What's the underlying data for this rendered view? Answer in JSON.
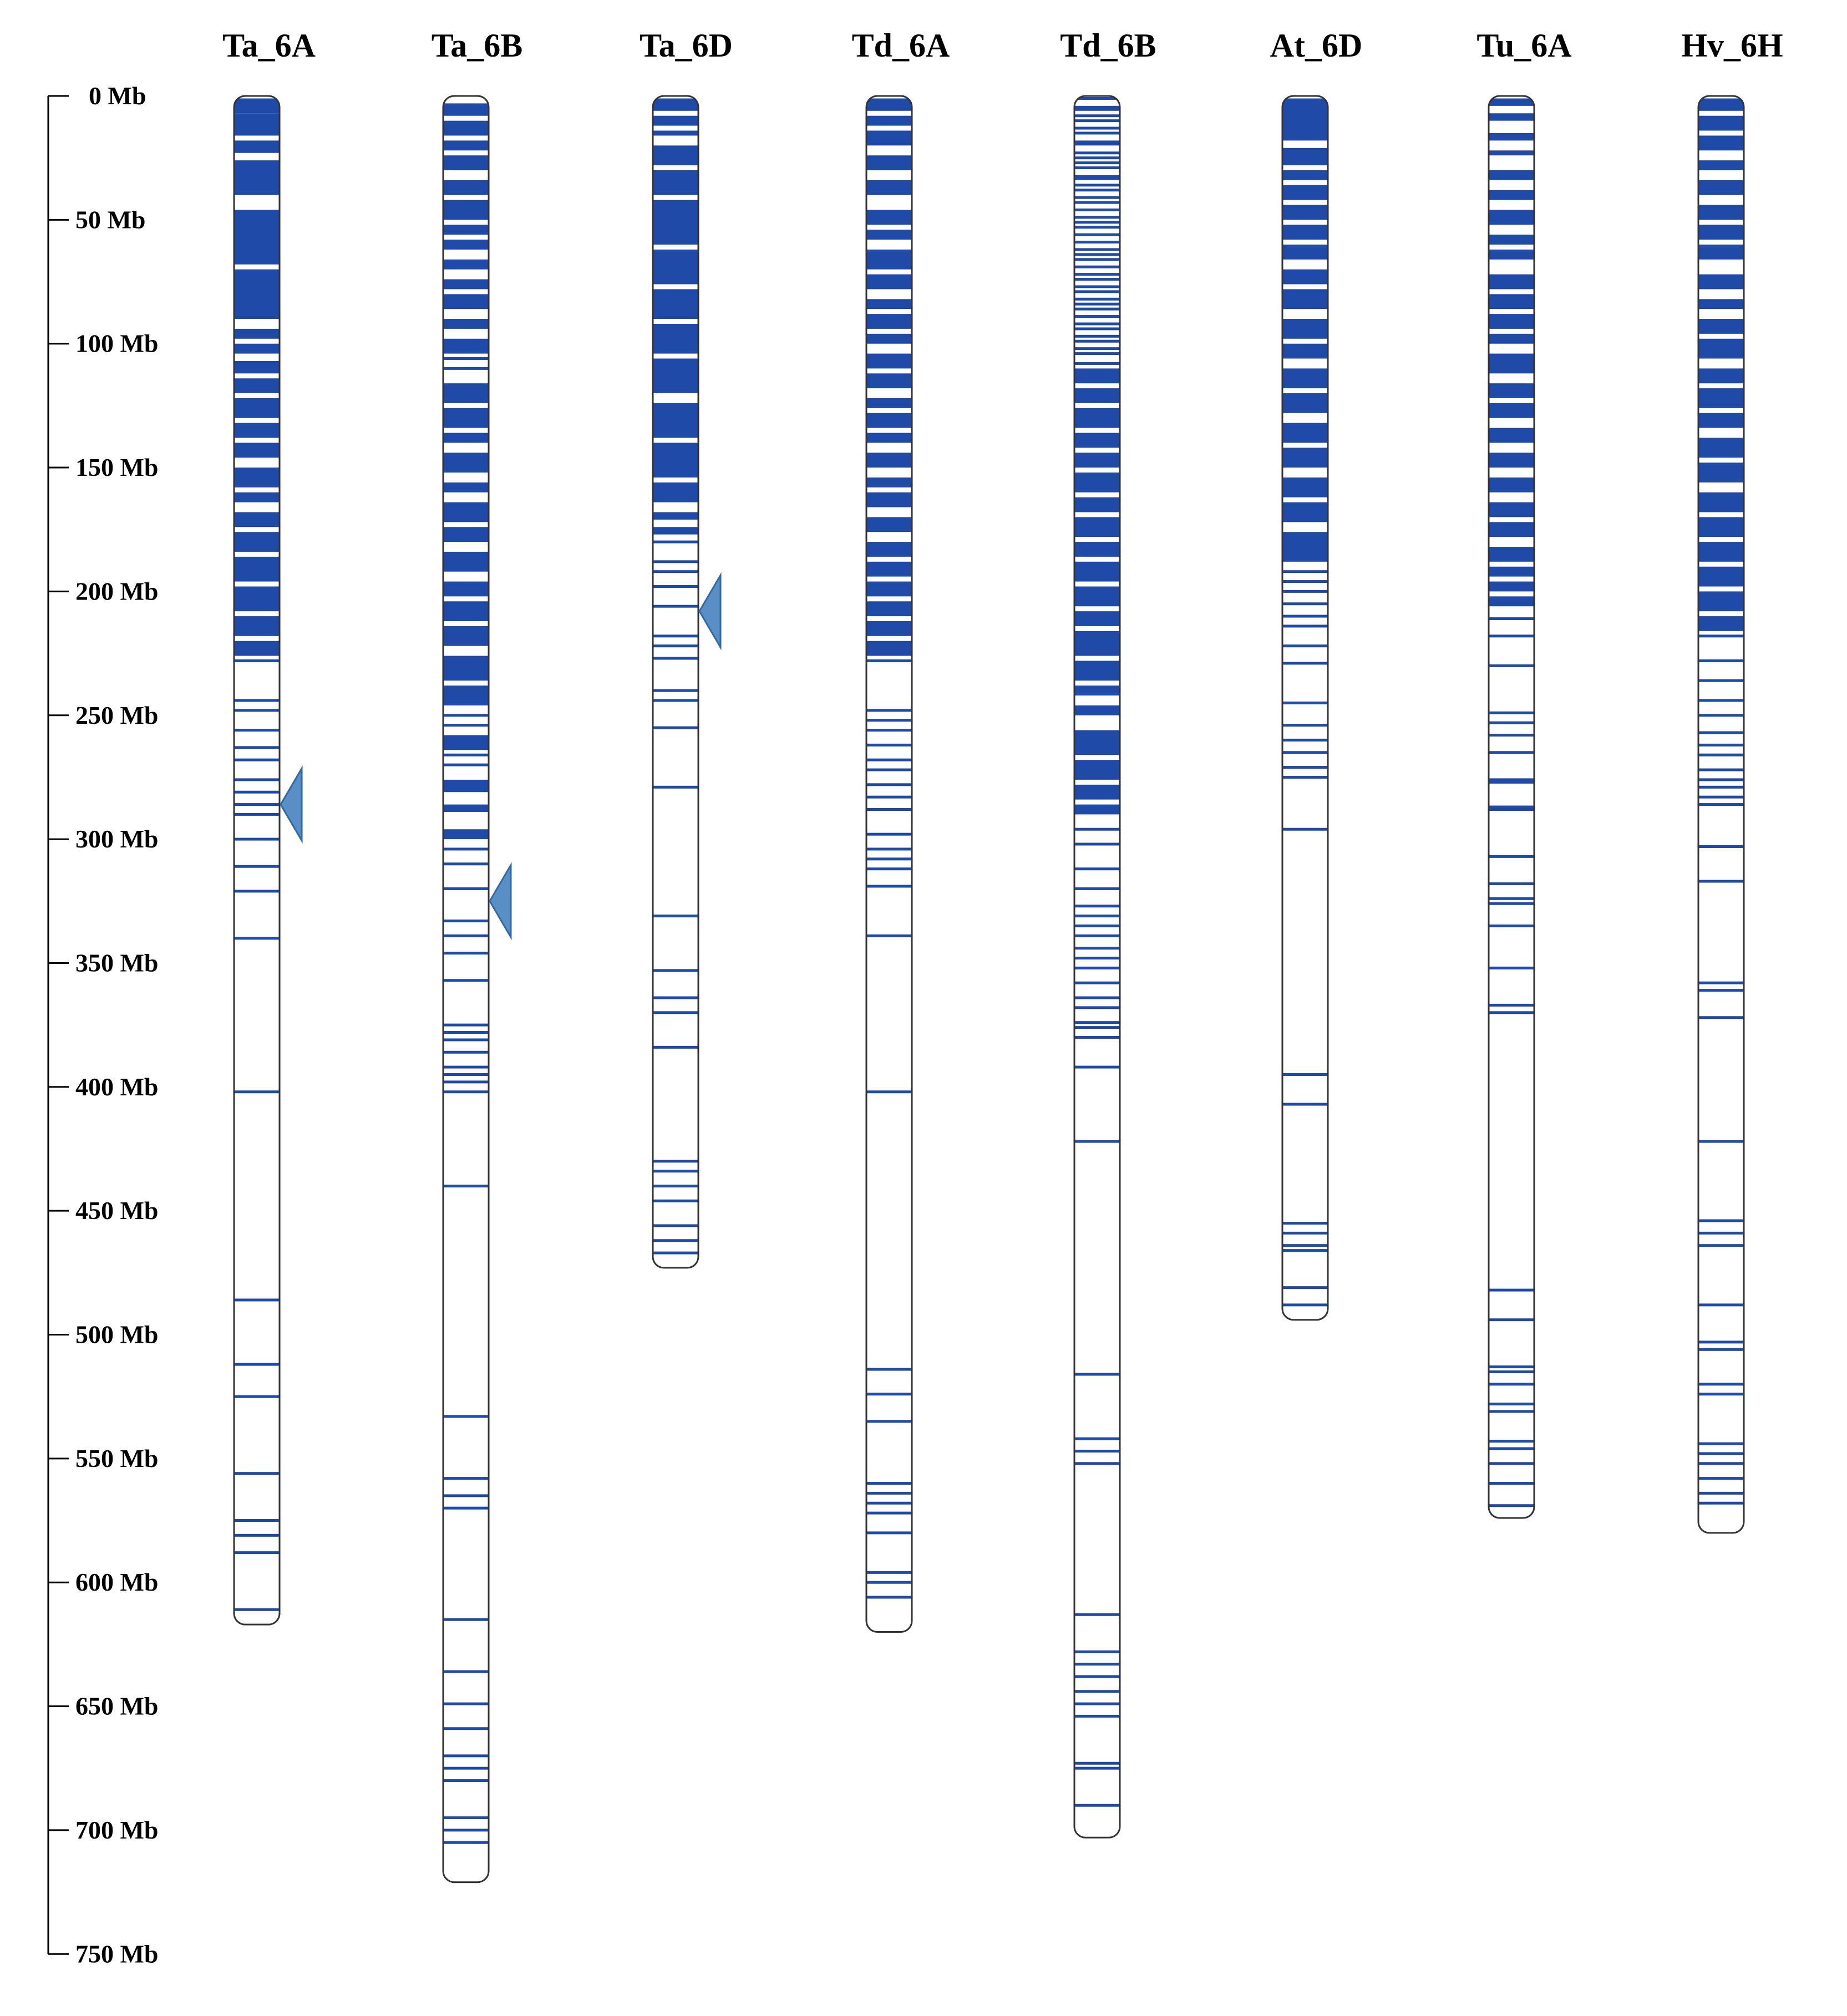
{
  "figure": {
    "accent_color": "#1f4aa8",
    "marker_color": "#5a8fc6",
    "scale": {
      "unit": "Mb",
      "max": 750,
      "step": 50,
      "tick_labels": [
        "0 Mb",
        "50 Mb",
        "100 Mb",
        "150 Mb",
        "200 Mb",
        "250 Mb",
        "300 Mb",
        "350 Mb",
        "400 Mb",
        "450 Mb",
        "500 Mb",
        "550 Mb",
        "600 Mb",
        "650 Mb",
        "700 Mb",
        "750 Mb"
      ]
    },
    "chromosomes": [
      {
        "name": "Ta_6A",
        "length": 617,
        "dense": [
          [
            1,
            7
          ],
          [
            7,
            16
          ],
          [
            18,
            23
          ],
          [
            26,
            40
          ],
          [
            46,
            68
          ],
          [
            70,
            90
          ],
          [
            94,
            98
          ],
          [
            100,
            104
          ],
          [
            107,
            112
          ],
          [
            114,
            120
          ],
          [
            122,
            130
          ],
          [
            132,
            138
          ],
          [
            140,
            146
          ],
          [
            150,
            158
          ],
          [
            160,
            164
          ],
          [
            168,
            174
          ],
          [
            176,
            184
          ],
          [
            186,
            196
          ],
          [
            198,
            208
          ],
          [
            210,
            218
          ],
          [
            220,
            226
          ]
        ],
        "lines": [
          228,
          244,
          248,
          256,
          263,
          268,
          276,
          281,
          286,
          290,
          300,
          311,
          321,
          340,
          402,
          486,
          512,
          525,
          556,
          575,
          581,
          588,
          611
        ],
        "marker": 286
      },
      {
        "name": "Ta_6B",
        "length": 721,
        "dense": [
          [
            3,
            8
          ],
          [
            10,
            16
          ],
          [
            18,
            22
          ],
          [
            24,
            30
          ],
          [
            34,
            40
          ],
          [
            42,
            50
          ],
          [
            52,
            56
          ],
          [
            58,
            62
          ],
          [
            66,
            70
          ],
          [
            74,
            78
          ],
          [
            80,
            86
          ],
          [
            90,
            94
          ],
          [
            98,
            104
          ],
          [
            116,
            124
          ],
          [
            126,
            134
          ],
          [
            136,
            140
          ],
          [
            144,
            152
          ],
          [
            156,
            160
          ],
          [
            164,
            172
          ],
          [
            174,
            180
          ],
          [
            184,
            192
          ],
          [
            196,
            202
          ],
          [
            204,
            212
          ],
          [
            214,
            222
          ],
          [
            226,
            236
          ],
          [
            238,
            246
          ],
          [
            258,
            264
          ],
          [
            276,
            281
          ],
          [
            286,
            289
          ],
          [
            296,
            300
          ]
        ],
        "lines": [
          106,
          110,
          250,
          254,
          261,
          266,
          270,
          304,
          310,
          320,
          333,
          339,
          346,
          357,
          375,
          378,
          381,
          386,
          392,
          395,
          398,
          402,
          440,
          533,
          558,
          565,
          570,
          615,
          636,
          649,
          659,
          670,
          675,
          680,
          695,
          700,
          705
        ],
        "marker": 325
      },
      {
        "name": "Ta_6D",
        "length": 473,
        "dense": [
          [
            1,
            6
          ],
          [
            8,
            12
          ],
          [
            14,
            16
          ],
          [
            20,
            28
          ],
          [
            30,
            40
          ],
          [
            42,
            60
          ],
          [
            62,
            76
          ],
          [
            78,
            90
          ],
          [
            92,
            104
          ],
          [
            106,
            120
          ],
          [
            124,
            138
          ],
          [
            140,
            154
          ],
          [
            156,
            164
          ],
          [
            168,
            171
          ],
          [
            174,
            177
          ]
        ],
        "lines": [
          180,
          188,
          192,
          198,
          206,
          218,
          222,
          227,
          240,
          244,
          255,
          279,
          331,
          353,
          364,
          370,
          384,
          430,
          434,
          440,
          446,
          456,
          462,
          467
        ],
        "marker": 208
      },
      {
        "name": "Td_6A",
        "length": 620,
        "dense": [
          [
            1,
            6
          ],
          [
            8,
            12
          ],
          [
            14,
            20
          ],
          [
            24,
            30
          ],
          [
            34,
            40
          ],
          [
            46,
            52
          ],
          [
            54,
            58
          ],
          [
            62,
            70
          ],
          [
            72,
            78
          ],
          [
            82,
            86
          ],
          [
            88,
            94
          ],
          [
            96,
            100
          ],
          [
            104,
            110
          ],
          [
            112,
            118
          ],
          [
            122,
            126
          ],
          [
            128,
            134
          ],
          [
            136,
            140
          ],
          [
            144,
            150
          ],
          [
            154,
            158
          ],
          [
            160,
            166
          ],
          [
            170,
            176
          ],
          [
            180,
            186
          ],
          [
            188,
            194
          ],
          [
            196,
            202
          ],
          [
            204,
            210
          ],
          [
            212,
            218
          ],
          [
            220,
            226
          ]
        ],
        "lines": [
          228,
          248,
          252,
          256,
          262,
          268,
          272,
          278,
          283,
          288,
          298,
          304,
          308,
          312,
          319,
          339,
          402,
          514,
          524,
          535,
          560,
          564,
          568,
          572,
          580,
          596,
          600,
          606
        ],
        "marker": null
      },
      {
        "name": "Td_6B",
        "length": 703,
        "dense": [
          [
            4,
            6
          ],
          [
            18,
            20
          ],
          [
            32,
            34
          ],
          [
            110,
            116
          ],
          [
            118,
            124
          ],
          [
            126,
            134
          ],
          [
            136,
            142
          ],
          [
            144,
            150
          ],
          [
            152,
            160
          ],
          [
            162,
            168
          ],
          [
            170,
            178
          ],
          [
            180,
            186
          ],
          [
            188,
            196
          ],
          [
            198,
            206
          ],
          [
            208,
            214
          ],
          [
            216,
            226
          ],
          [
            228,
            236
          ],
          [
            238,
            242
          ],
          [
            246,
            250
          ],
          [
            256,
            266
          ],
          [
            268,
            276
          ],
          [
            278,
            284
          ],
          [
            286,
            290
          ]
        ],
        "lines": [
          1,
          8,
          10,
          13,
          15,
          23,
          25,
          27,
          29,
          36,
          38,
          41,
          43,
          46,
          49,
          51,
          53,
          56,
          59,
          62,
          64,
          66,
          69,
          72,
          74,
          77,
          79,
          82,
          84,
          86,
          89,
          92,
          94,
          97,
          99,
          102,
          104,
          108,
          296,
          302,
          312,
          320,
          327,
          331,
          335,
          339,
          344,
          348,
          352,
          358,
          364,
          368,
          374,
          376,
          380,
          392,
          422,
          516,
          542,
          547,
          552,
          613,
          628,
          633,
          638,
          644,
          649,
          654,
          673,
          675,
          690
        ],
        "marker": null
      },
      {
        "name": "At_6D",
        "length": 494,
        "dense": [
          [
            1,
            18
          ],
          [
            21,
            28
          ],
          [
            30,
            34
          ],
          [
            36,
            42
          ],
          [
            44,
            50
          ],
          [
            52,
            58
          ],
          [
            60,
            66
          ],
          [
            70,
            76
          ],
          [
            78,
            86
          ],
          [
            90,
            98
          ],
          [
            100,
            106
          ],
          [
            110,
            118
          ],
          [
            120,
            128
          ],
          [
            132,
            140
          ],
          [
            142,
            150
          ],
          [
            154,
            162
          ],
          [
            164,
            172
          ],
          [
            176,
            188
          ]
        ],
        "lines": [
          192,
          196,
          200,
          205,
          210,
          214,
          222,
          229,
          245,
          254,
          260,
          265,
          271,
          275,
          296,
          395,
          407,
          455,
          459,
          464,
          466,
          481,
          488
        ],
        "marker": null
      },
      {
        "name": "Tu_6A",
        "length": 574,
        "dense": [
          [
            1,
            4
          ],
          [
            7,
            10
          ],
          [
            15,
            18
          ],
          [
            22,
            24
          ],
          [
            30,
            34
          ],
          [
            38,
            42
          ],
          [
            46,
            52
          ],
          [
            56,
            60
          ],
          [
            62,
            66
          ],
          [
            72,
            78
          ],
          [
            80,
            86
          ],
          [
            88,
            94
          ],
          [
            96,
            100
          ],
          [
            104,
            112
          ],
          [
            116,
            122
          ],
          [
            124,
            130
          ],
          [
            134,
            140
          ],
          [
            144,
            150
          ],
          [
            154,
            160
          ],
          [
            164,
            170
          ],
          [
            172,
            178
          ],
          [
            182,
            188
          ],
          [
            190,
            194
          ],
          [
            196,
            200
          ],
          [
            202,
            206
          ]
        ],
        "lines": [
          211,
          218,
          230,
          249,
          253,
          258,
          265,
          276,
          277,
          287,
          288,
          307,
          318,
          324,
          326,
          335,
          352,
          367,
          370,
          482,
          494,
          513,
          515,
          520,
          528,
          531,
          543,
          546,
          552,
          560,
          569
        ],
        "marker": null
      },
      {
        "name": "Hv_6H",
        "length": 580,
        "dense": [
          [
            1,
            6
          ],
          [
            8,
            14
          ],
          [
            16,
            22
          ],
          [
            26,
            30
          ],
          [
            34,
            40
          ],
          [
            44,
            50
          ],
          [
            52,
            58
          ],
          [
            60,
            66
          ],
          [
            72,
            78
          ],
          [
            82,
            86
          ],
          [
            90,
            96
          ],
          [
            98,
            106
          ],
          [
            110,
            116
          ],
          [
            118,
            126
          ],
          [
            128,
            134
          ],
          [
            138,
            146
          ],
          [
            148,
            156
          ],
          [
            160,
            168
          ],
          [
            170,
            178
          ],
          [
            180,
            188
          ],
          [
            190,
            198
          ],
          [
            200,
            208
          ],
          [
            210,
            216
          ]
        ],
        "lines": [
          218,
          228,
          236,
          244,
          250,
          257,
          262,
          266,
          272,
          276,
          279,
          283,
          286,
          303,
          317,
          358,
          361,
          372,
          422,
          454,
          459,
          464,
          488,
          503,
          506,
          520,
          524,
          544,
          548,
          552,
          558,
          564,
          568
        ],
        "marker": null
      }
    ]
  }
}
